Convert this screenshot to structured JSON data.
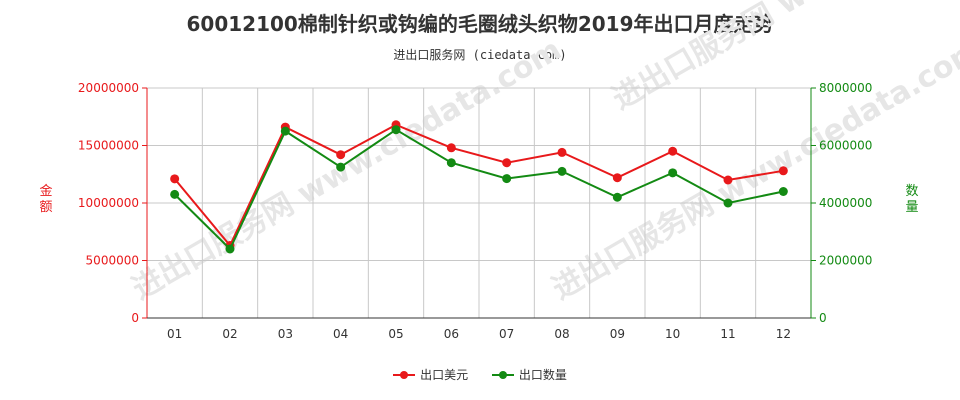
{
  "title": "60012100棉制针织或钩编的毛圈绒头织物2019年出口月度走势",
  "subtitle": "进出口服务网 (ciedata.com)",
  "watermark": "进出口服务网 www.ciedata.com",
  "colors": {
    "value": "#e8191b",
    "quantity": "#138a13",
    "grid": "#c8c8c8",
    "axis": "#333333"
  },
  "chart_data": {
    "type": "line",
    "categories": [
      "01",
      "02",
      "03",
      "04",
      "05",
      "06",
      "07",
      "08",
      "09",
      "10",
      "11",
      "12"
    ],
    "series": [
      {
        "name": "出口美元",
        "axis": "left",
        "color": "#e8191b",
        "values": [
          12100000,
          6300000,
          16600000,
          14200000,
          16800000,
          14800000,
          13500000,
          14400000,
          12200000,
          14500000,
          12000000,
          12800000
        ]
      },
      {
        "name": "出口数量",
        "axis": "right",
        "color": "#138a13",
        "values": [
          4300000,
          2400000,
          6500000,
          5250000,
          6550000,
          5400000,
          4850000,
          5100000,
          4200000,
          5050000,
          4000000,
          4400000
        ]
      }
    ],
    "y_left": {
      "label": "金额",
      "lim": [
        0,
        20000000
      ],
      "ticks": [
        "0",
        "5000000",
        "10000000",
        "15000000",
        "20000000"
      ]
    },
    "y_right": {
      "label": "数量",
      "lim": [
        0,
        8000000
      ],
      "ticks": [
        "0",
        "2000000",
        "4000000",
        "6000000",
        "8000000"
      ]
    },
    "grid": true,
    "legend": "bottom-center"
  }
}
